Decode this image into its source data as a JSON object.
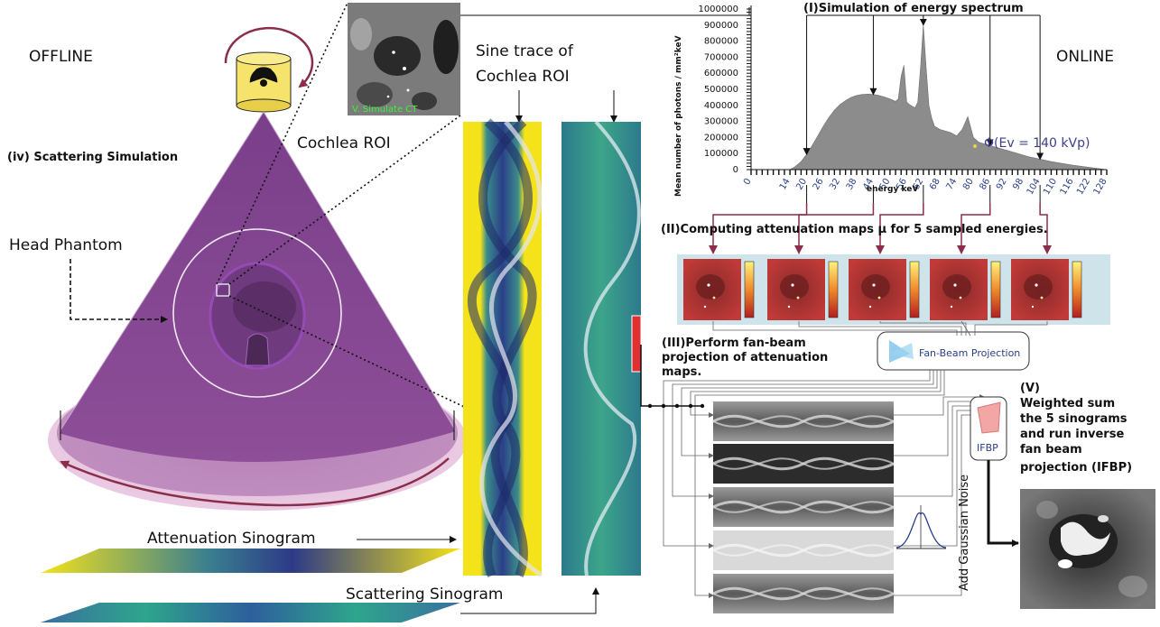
{
  "offline_label": "OFFLINE",
  "online_label": "ONLINE",
  "scatter_title": "(iv) Scattering Simulation",
  "head_phantom_label": "Head Phantom",
  "cochlea_label": "Cochlea ROI",
  "sine_trace_line1": "Sine trace of",
  "sine_trace_line2": "Cochlea ROI",
  "inset_caption": "V. Simulate CT",
  "attenuation_sinogram_label": "Attenuation Sinogram",
  "scattering_sinogram_label": "Scattering Sinogram",
  "step1_title": "(I)Simulation of energy spectrum",
  "step2_title": "(II)Computing attenuation maps μ for 5 sampled energies.",
  "step3_lines": [
    "(III)Perform fan-beam",
    "projection of attenuation",
    "maps."
  ],
  "step5_lines": [
    "(V)",
    "Weighted sum",
    "the 5 sinograms",
    "and run inverse",
    "fan beam",
    "projection (IFBP)"
  ],
  "fan_beam_label": "Fan-Beam Projection",
  "ifbp_label": "IFBP",
  "noise_label": "Add Gaussian Noise",
  "chart_data": {
    "type": "area",
    "title": "",
    "xlabel": "energy keV",
    "ylabel": "Mean number of photons / mm²keV",
    "xlim": [
      0,
      128
    ],
    "ylim": [
      0,
      1000000
    ],
    "x_ticks": [
      0,
      14,
      20,
      26,
      32,
      38,
      44,
      50,
      56,
      62,
      68,
      74,
      80,
      86,
      92,
      98,
      104,
      110,
      116,
      122,
      128
    ],
    "y_ticks": [
      0,
      100000,
      200000,
      300000,
      400000,
      500000,
      600000,
      700000,
      800000,
      900000,
      1000000
    ],
    "annotation": "Φ(Ev = 140 kVp)",
    "sampled_energies_keV": [
      20,
      44,
      62,
      86,
      104
    ],
    "color": "#8c8c8c",
    "x": [
      14,
      16,
      18,
      20,
      22,
      24,
      26,
      28,
      30,
      32,
      34,
      36,
      38,
      40,
      42,
      44,
      46,
      48,
      50,
      52,
      53,
      54,
      55,
      56,
      57,
      58,
      59,
      60,
      61,
      62,
      63,
      64,
      65,
      66,
      68,
      70,
      72,
      74,
      76,
      78,
      80,
      82,
      84,
      86,
      88,
      90,
      92,
      94,
      96,
      98,
      100,
      104,
      108,
      112,
      116,
      120,
      124,
      128
    ],
    "y": [
      0,
      20000,
      50000,
      95000,
      150000,
      210000,
      270000,
      325000,
      370000,
      405000,
      430000,
      450000,
      462000,
      468000,
      470000,
      468000,
      462000,
      452000,
      440000,
      425000,
      440000,
      580000,
      650000,
      420000,
      405000,
      395000,
      385000,
      420000,
      640000,
      900000,
      640000,
      400000,
      320000,
      270000,
      250000,
      240000,
      230000,
      210000,
      250000,
      330000,
      200000,
      170000,
      160000,
      150000,
      140000,
      130000,
      120000,
      110000,
      100000,
      90000,
      80000,
      65000,
      50000,
      38000,
      27000,
      18000,
      9000,
      0
    ]
  }
}
